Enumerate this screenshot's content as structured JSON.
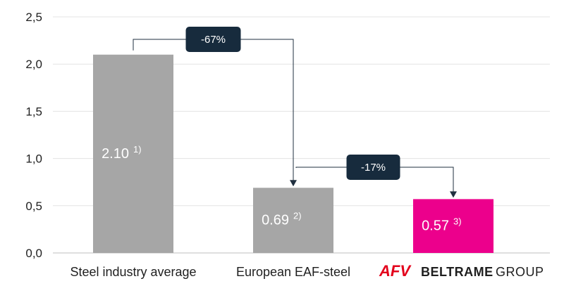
{
  "chart_data": {
    "type": "bar",
    "categories": [
      "Steel industry average",
      "European EAF-steel",
      ""
    ],
    "values": [
      2.1,
      0.69,
      0.57
    ],
    "data_labels": [
      "2.10",
      "0.69",
      "0.57"
    ],
    "data_label_notes": [
      "1)",
      "2)",
      "3)"
    ],
    "bar_colors": [
      "#a6a6a6",
      "#a6a6a6",
      "#ec008c"
    ],
    "yticks": [
      "0,0",
      "0,5",
      "1,0",
      "1,5",
      "2,0",
      "2,5"
    ],
    "ytick_values": [
      0,
      0.5,
      1.0,
      1.5,
      2.0,
      2.5
    ],
    "ylim": [
      0,
      2.5
    ],
    "grid": true,
    "title": "",
    "xlabel": "",
    "ylabel": "",
    "annotations": [
      {
        "text": "-67%",
        "from": 0,
        "to": 1
      },
      {
        "text": "-17%",
        "from": 1,
        "to": 2
      }
    ],
    "logo": {
      "mark": "AFV",
      "brand": "BELTRAME",
      "suffix": "GROUP",
      "mark_color": "#e3001b"
    }
  }
}
